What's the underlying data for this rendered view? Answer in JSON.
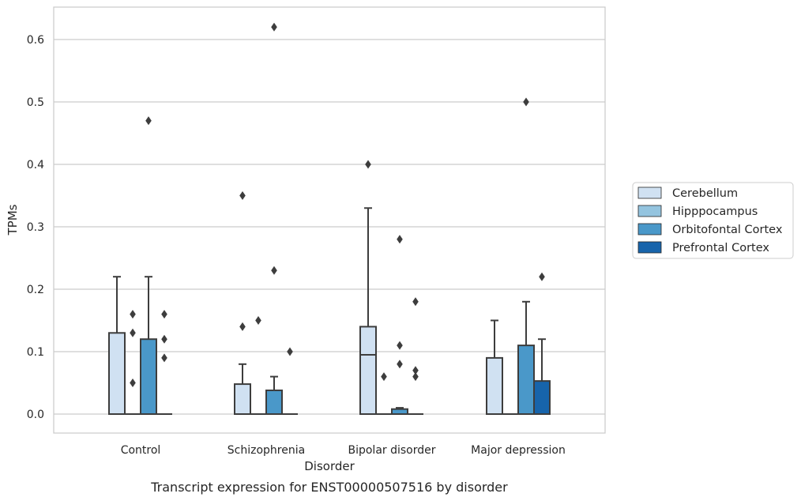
{
  "chart_data": {
    "type": "boxplot",
    "caption": "Transcript expression for ENST00000507516 by disorder",
    "xlabel": "Disorder",
    "ylabel": "TPMs",
    "ylim": [
      -0.03,
      0.65
    ],
    "yticks": [
      "0.0",
      "0.1",
      "0.2",
      "0.3",
      "0.4",
      "0.5",
      "0.6"
    ],
    "grid": true,
    "legend_position": "right",
    "categories": [
      "Control",
      "Schizophrenia",
      "Bipolar disorder",
      "Major depression"
    ],
    "series": [
      {
        "name": "Cerebellum",
        "color": "#d0e1f2",
        "boxes": [
          {
            "q1": 0,
            "median": 0,
            "q3": 0.13,
            "whisker_low": 0,
            "whisker_high": 0.22,
            "outliers": []
          },
          {
            "q1": 0,
            "median": 0,
            "q3": 0.048,
            "whisker_low": 0,
            "whisker_high": 0.08,
            "outliers": [
              0.35,
              0.14
            ]
          },
          {
            "q1": 0,
            "median": 0.095,
            "q3": 0.14,
            "whisker_low": 0,
            "whisker_high": 0.33,
            "outliers": [
              0.4
            ]
          },
          {
            "q1": 0,
            "median": 0,
            "q3": 0.09,
            "whisker_low": 0,
            "whisker_high": 0.15,
            "outliers": []
          }
        ]
      },
      {
        "name": "Hipppocampus",
        "color": "#94c4df",
        "boxes": [
          {
            "q1": 0,
            "median": 0,
            "q3": 0,
            "whisker_low": 0,
            "whisker_high": 0,
            "outliers": [
              0.16,
              0.13,
              0.05
            ]
          },
          {
            "q1": 0,
            "median": 0,
            "q3": 0,
            "whisker_low": 0,
            "whisker_high": 0,
            "outliers": [
              0.15
            ]
          },
          {
            "q1": 0,
            "median": 0,
            "q3": 0,
            "whisker_low": 0,
            "whisker_high": 0,
            "outliers": [
              0.06
            ]
          },
          {
            "q1": 0,
            "median": 0,
            "q3": 0,
            "whisker_low": 0,
            "whisker_high": 0,
            "outliers": []
          }
        ]
      },
      {
        "name": "Orbitofontal Cortex",
        "color": "#4a98c9",
        "boxes": [
          {
            "q1": 0,
            "median": 0,
            "q3": 0.12,
            "whisker_low": 0,
            "whisker_high": 0.22,
            "outliers": [
              0.47
            ]
          },
          {
            "q1": 0,
            "median": 0,
            "q3": 0.038,
            "whisker_low": 0,
            "whisker_high": 0.06,
            "outliers": [
              0.62,
              0.23
            ]
          },
          {
            "q1": 0,
            "median": 0,
            "q3": 0.008,
            "whisker_low": 0,
            "whisker_high": 0.01,
            "outliers": [
              0.28,
              0.11,
              0.08
            ]
          },
          {
            "q1": 0,
            "median": 0,
            "q3": 0.11,
            "whisker_low": 0,
            "whisker_high": 0.18,
            "outliers": [
              0.5
            ]
          }
        ]
      },
      {
        "name": "Prefrontal Cortex",
        "color": "#1764ab",
        "boxes": [
          {
            "q1": 0,
            "median": 0,
            "q3": 0,
            "whisker_low": 0,
            "whisker_high": 0,
            "outliers": [
              0.16,
              0.12,
              0.09
            ]
          },
          {
            "q1": 0,
            "median": 0,
            "q3": 0,
            "whisker_low": 0,
            "whisker_high": 0,
            "outliers": [
              0.1
            ]
          },
          {
            "q1": 0,
            "median": 0,
            "q3": 0,
            "whisker_low": 0,
            "whisker_high": 0,
            "outliers": [
              0.18,
              0.07,
              0.06
            ]
          },
          {
            "q1": 0,
            "median": 0,
            "q3": 0.053,
            "whisker_low": 0,
            "whisker_high": 0.12,
            "outliers": [
              0.22
            ]
          }
        ]
      }
    ]
  }
}
